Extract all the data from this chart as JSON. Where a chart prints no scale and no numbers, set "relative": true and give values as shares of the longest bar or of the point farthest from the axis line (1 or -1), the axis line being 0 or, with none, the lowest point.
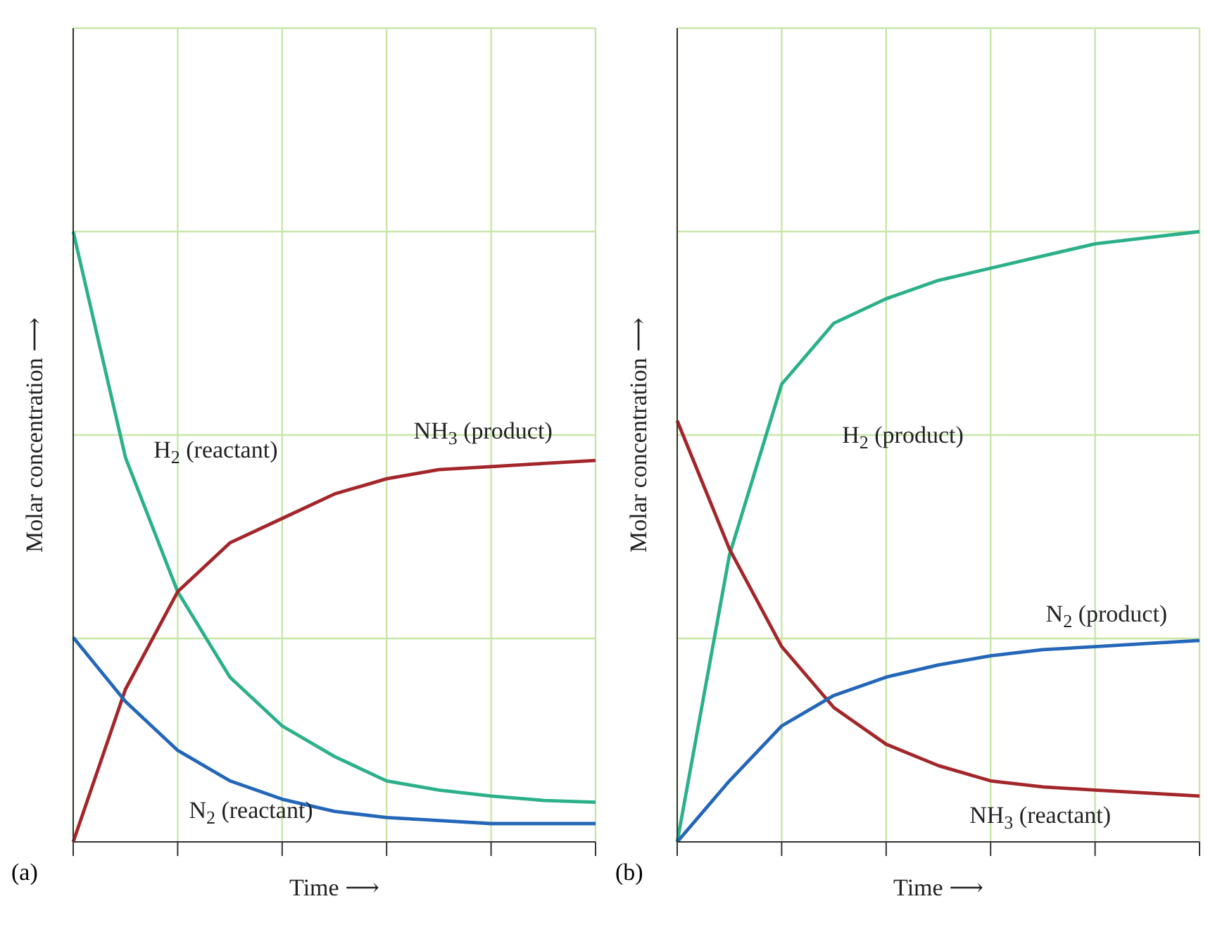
{
  "chart_data": [
    {
      "type": "line",
      "relative": true,
      "xlabel": "Time ⟶",
      "ylabel": "Molar concentration ⟶",
      "annotations": [
        "(a)"
      ],
      "categories": [
        null,
        null,
        null,
        null,
        null,
        null,
        null,
        null,
        null,
        null,
        null
      ],
      "grid": true,
      "marker": "none",
      "line_style": "solid",
      "series": [
        {
          "name": "H$_{2}$ (reactant)",
          "color": "#2bb08a",
          "values": [
            1.0,
            0.63,
            0.41,
            0.27,
            0.19,
            0.14,
            0.1,
            0.085,
            0.075,
            0.068,
            0.065
          ]
        },
        {
          "name": "NH$_{3}$ (product)",
          "color": "#a3262a",
          "values": [
            0,
            0.25,
            0.41,
            0.49,
            0.53,
            0.57,
            0.595,
            0.61,
            0.615,
            0.62,
            0.625
          ]
        },
        {
          "name": "N$_{2}$ (reactant)",
          "color": "#2466b8",
          "values": [
            0.335,
            0.23,
            0.15,
            0.1,
            0.07,
            0.05,
            0.04,
            0.035,
            0.03,
            0.03,
            0.03
          ]
        }
      ]
    },
    {
      "type": "line",
      "relative": true,
      "xlabel": "Time ⟶",
      "ylabel": "Molar concentration ⟶",
      "annotations": [
        "(b)"
      ],
      "categories": [
        null,
        null,
        null,
        null,
        null,
        null,
        null,
        null,
        null,
        null,
        null
      ],
      "grid": true,
      "marker": "none",
      "line_style": "solid",
      "series": [
        {
          "name": "H$_{2}$ (product)",
          "color": "#2bb08a",
          "values": [
            0,
            0.47,
            0.75,
            0.85,
            0.89,
            0.92,
            0.94,
            0.96,
            0.98,
            0.99,
            1.0
          ]
        },
        {
          "name": "NH$_{3}$ (reactant)",
          "color": "#a3262a",
          "values": [
            0.69,
            0.48,
            0.32,
            0.22,
            0.16,
            0.125,
            0.1,
            0.09,
            0.085,
            0.08,
            0.075
          ]
        },
        {
          "name": "N$_{2}$ (product)",
          "color": "#2466b8",
          "values": [
            0,
            0.1,
            0.19,
            0.24,
            0.27,
            0.29,
            0.305,
            0.315,
            0.32,
            0.325,
            0.33
          ]
        }
      ]
    }
  ]
}
